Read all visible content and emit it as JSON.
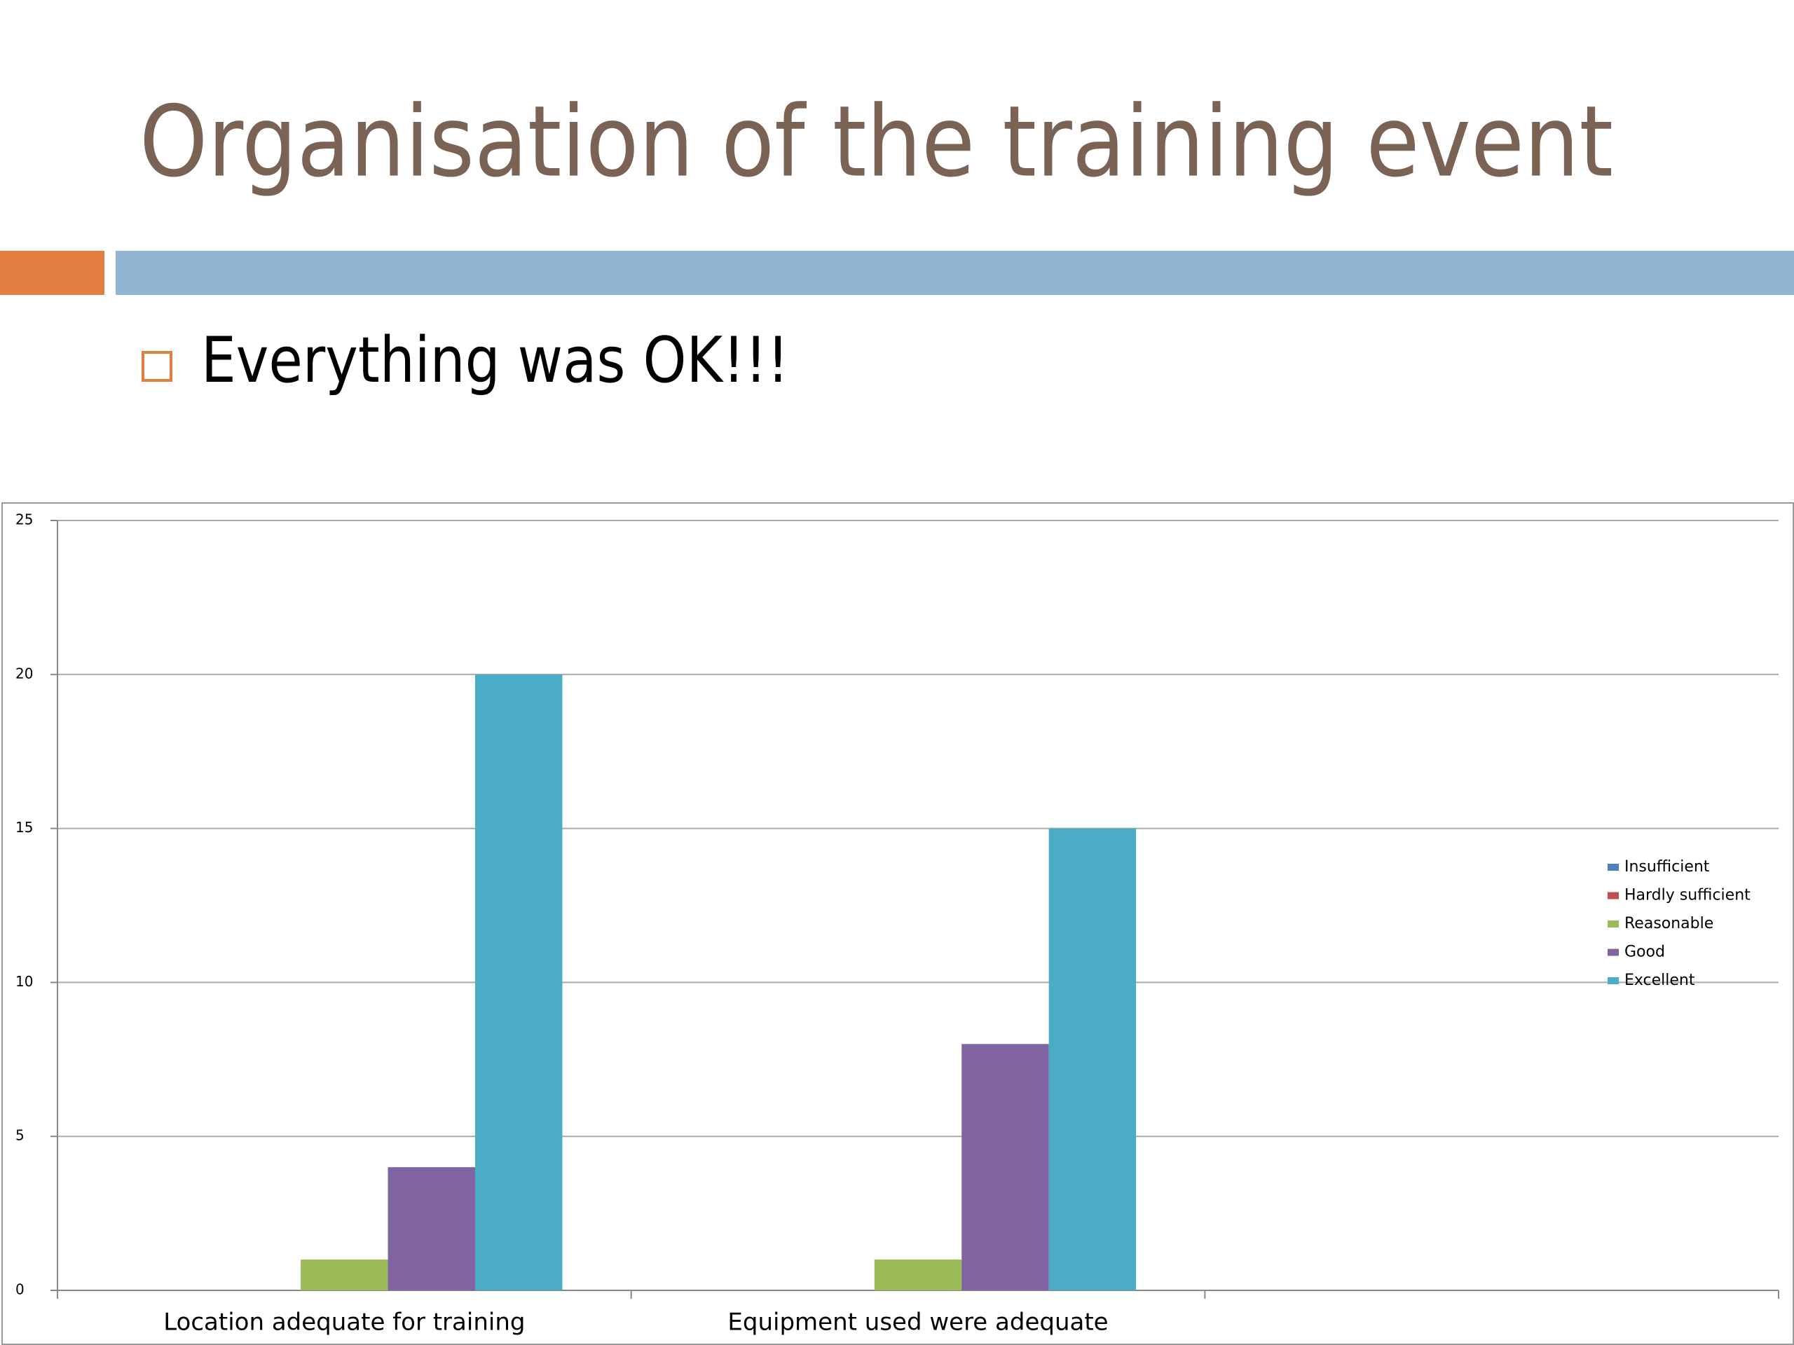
{
  "slide": {
    "title": "Organisation of the training event",
    "bullet": "Everything was OK!!!"
  },
  "chart_data": {
    "type": "bar",
    "categories": [
      "Location adequate for training",
      "Equipment used were adequate",
      null
    ],
    "series": [
      {
        "name": "Insufficient",
        "color": "#4f81bd",
        "values": [
          0,
          0,
          null
        ]
      },
      {
        "name": "Hardly sufficient",
        "color": "#c0504d",
        "values": [
          0,
          0,
          null
        ]
      },
      {
        "name": "Reasonable",
        "color": "#9bbb59",
        "values": [
          1,
          1,
          null
        ]
      },
      {
        "name": "Good",
        "color": "#8064a2",
        "values": [
          4,
          8,
          null
        ]
      },
      {
        "name": "Excellent",
        "color": "#4bacc6",
        "values": [
          20,
          15,
          null
        ]
      }
    ],
    "ylim": [
      0,
      25
    ],
    "yticks": [
      0,
      5,
      10,
      15,
      20,
      25
    ],
    "grid": true,
    "legend": "right"
  }
}
